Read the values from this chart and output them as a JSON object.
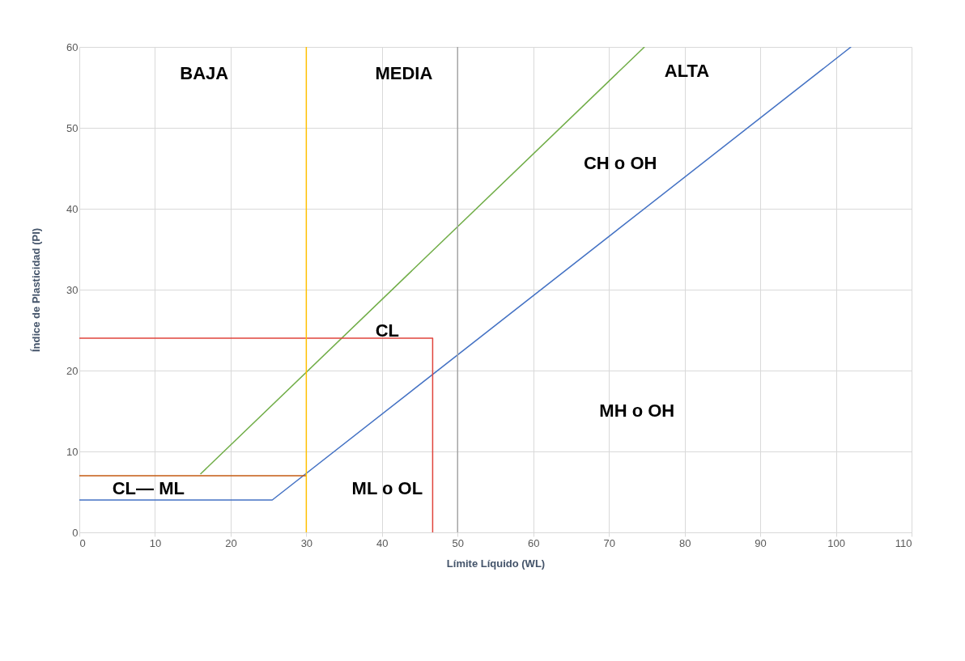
{
  "chart_data": {
    "type": "line",
    "xlabel": "Límite Líquido (WL)",
    "ylabel": "Índice de Plasticidad (PI)",
    "xlim": [
      0,
      110
    ],
    "xticks": [
      0,
      10,
      20,
      30,
      40,
      50,
      60,
      70,
      80,
      90,
      100,
      110
    ],
    "ylim": [
      0,
      60
    ],
    "yticks": [
      0,
      10,
      20,
      30,
      40,
      50,
      60
    ],
    "grid": true,
    "marker": "none",
    "line_style": "solid",
    "series": [
      {
        "color": "#4472c4",
        "x": [
          0,
          25.5,
          102
        ],
        "values": [
          4,
          4,
          60
        ]
      },
      {
        "color": "#70ad47",
        "x": [
          16,
          74.7
        ],
        "values": [
          7.2,
          60
        ]
      },
      {
        "color": "#c55a11",
        "x": [
          0,
          30
        ],
        "values": [
          7,
          7
        ]
      },
      {
        "color": "#e0443c",
        "x": [
          0,
          46.7,
          46.7
        ],
        "values": [
          24,
          24,
          0
        ]
      }
    ],
    "ref_lines": [
      {
        "axis": "x",
        "value": 30,
        "color": "#ffc000"
      },
      {
        "axis": "x",
        "value": 50,
        "color": "#a5a5a5"
      }
    ],
    "annotations": [
      "BAJA",
      "MEDIA",
      "ALTA",
      "CH  o OH",
      "CL",
      "MH  o OH",
      "ML  o  OL",
      "CL— ML"
    ]
  }
}
